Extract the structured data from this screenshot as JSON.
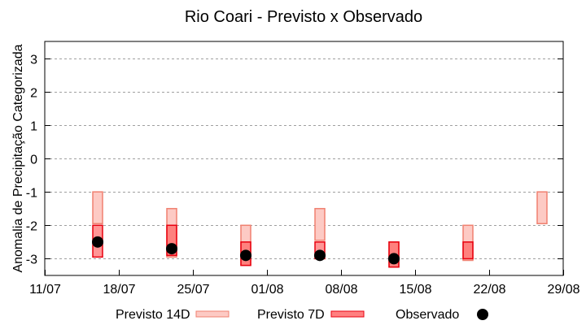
{
  "chart_data": {
    "type": "bar",
    "subtype": "floating-range-bars-with-points",
    "title": "Rio Coari - Previsto x Observado",
    "xlabel": "",
    "ylabel": "Anomalia de Precipitação Categorizada",
    "ylim": [
      -3.5,
      3.5
    ],
    "yticks": [
      3,
      2,
      1,
      0,
      -1,
      -2,
      -3
    ],
    "xlim_days": [
      0,
      49
    ],
    "xticks": [
      {
        "label": "11/07",
        "day": 0
      },
      {
        "label": "18/07",
        "day": 7
      },
      {
        "label": "25/07",
        "day": 14
      },
      {
        "label": "01/08",
        "day": 21
      },
      {
        "label": "08/08",
        "day": 28
      },
      {
        "label": "15/08",
        "day": 35
      },
      {
        "label": "22/08",
        "day": 42
      },
      {
        "label": "29/08",
        "day": 49
      }
    ],
    "grid": {
      "y": true,
      "x": false,
      "style": "dotted"
    },
    "legend_position": "bottom",
    "categories": [
      "16/07",
      "23/07",
      "30/07",
      "06/08",
      "13/08",
      "20/08",
      "27/08"
    ],
    "category_days": [
      5,
      12,
      19,
      26,
      33,
      40,
      47
    ],
    "series": [
      {
        "name": "Previsto 14D",
        "kind": "range",
        "fill": "#fdcac4",
        "stroke": "#f08070",
        "ranges": [
          [
            -1.0,
            -1.95
          ],
          [
            -1.5,
            -2.95
          ],
          [
            -2.0,
            -3.2
          ],
          [
            -1.5,
            -2.45
          ],
          [
            -2.5,
            -3.25
          ],
          [
            -2.0,
            -3.05
          ],
          [
            -1.0,
            -1.95
          ]
        ]
      },
      {
        "name": "Previsto 7D",
        "kind": "range",
        "fill": "#ff5050",
        "fill_opacity": 0.6,
        "stroke": "#e8000f",
        "ranges": [
          [
            -2.0,
            -2.95
          ],
          [
            -2.0,
            -2.9
          ],
          [
            -2.5,
            -3.2
          ],
          [
            -2.5,
            -3.0
          ],
          [
            -2.5,
            -3.25
          ],
          [
            -2.5,
            -3.0
          ],
          null
        ]
      },
      {
        "name": "Observado",
        "kind": "point",
        "color": "#000000",
        "values": [
          -2.5,
          -2.7,
          -2.9,
          -2.9,
          -3.0,
          null,
          null
        ]
      }
    ]
  },
  "legend": {
    "items": [
      {
        "label": "Previsto 14D"
      },
      {
        "label": "Previsto 7D"
      },
      {
        "label": "Observado"
      }
    ]
  }
}
